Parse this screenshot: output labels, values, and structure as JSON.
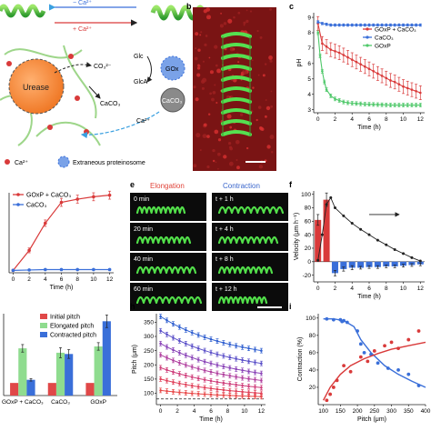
{
  "panel_labels": {
    "b": "b",
    "c": "c",
    "e": "e",
    "f": "f",
    "h": "h",
    "i": "i"
  },
  "panel_a": {
    "top_arrow_label": "− Ca²⁺",
    "bottom_arrow_label": "+ Ca²⁺",
    "labels": {
      "co3": "CO₃²⁻",
      "urease": "Urease",
      "glc": "Glc",
      "glca": "GlcA",
      "gox": "GOx",
      "caco3_arrow": "CaCO₃",
      "caco3_ball": "CaCO₃",
      "ca2": "Ca²⁺"
    },
    "legend": {
      "ca": "Ca²⁺",
      "proteinosome": "Extraneous proteinosome"
    }
  },
  "panel_e": {
    "header_left": "Elongation",
    "header_right": "Contraction",
    "left_labels": [
      "0 min",
      "20 min",
      "40 min",
      "60 min"
    ],
    "right_labels": [
      "t + 1 h",
      "t + 4 h",
      "t + 8 h",
      "t + 12 h"
    ]
  },
  "colors": {
    "red": "#d93a3a",
    "blue": "#3a6fd9",
    "green": "#4fc86a",
    "header_red": "#e0443a",
    "header_blue": "#3a66cc"
  },
  "chart_data": [
    {
      "id": "c",
      "type": "line",
      "xlabel": "Time (h)",
      "ylabel": "pH",
      "xlim": [
        -0.5,
        12.5
      ],
      "ylim": [
        2.8,
        9.3
      ],
      "xticks": [
        0,
        2,
        4,
        6,
        8,
        10,
        12
      ],
      "yticks": [
        3,
        4,
        5,
        6,
        7,
        8,
        9
      ],
      "legend_position": "top-right",
      "series": [
        {
          "name": "GOxP + CaCO₃",
          "color": "#d93a3a",
          "x": [
            0,
            0.5,
            1,
            1.5,
            2,
            2.5,
            3,
            3.5,
            4,
            4.5,
            5,
            5.5,
            6,
            6.5,
            7,
            7.5,
            8,
            8.5,
            9,
            9.5,
            10,
            10.5,
            11,
            11.5,
            12
          ],
          "y": [
            8.6,
            7.3,
            7.1,
            6.9,
            6.8,
            6.7,
            6.55,
            6.4,
            6.25,
            6.1,
            5.95,
            5.8,
            5.65,
            5.5,
            5.35,
            5.2,
            5.05,
            4.9,
            4.8,
            4.65,
            4.5,
            4.4,
            4.3,
            4.2,
            4.1
          ],
          "err": 0.45
        },
        {
          "name": "CaCO₃",
          "color": "#3a6fd9",
          "x": [
            0,
            0.5,
            1,
            1.5,
            2,
            2.5,
            3,
            3.5,
            4,
            4.5,
            5,
            5.5,
            6,
            6.5,
            7,
            7.5,
            8,
            8.5,
            9,
            9.5,
            10,
            10.5,
            11,
            11.5,
            12
          ],
          "y": [
            8.7,
            8.6,
            8.55,
            8.5,
            8.5,
            8.5,
            8.5,
            8.5,
            8.5,
            8.5,
            8.5,
            8.5,
            8.5,
            8.5,
            8.5,
            8.5,
            8.5,
            8.5,
            8.5,
            8.5,
            8.5,
            8.5,
            8.5,
            8.5,
            8.5
          ],
          "err": 0.08
        },
        {
          "name": "GOxP",
          "color": "#4fc86a",
          "x": [
            0,
            0.25,
            0.5,
            0.75,
            1,
            1.5,
            2,
            2.5,
            3,
            3.5,
            4,
            4.5,
            5,
            5.5,
            6,
            6.5,
            7,
            7.5,
            8,
            8.5,
            9,
            9.5,
            10,
            10.5,
            11,
            11.5,
            12
          ],
          "y": [
            8.0,
            6.5,
            5.5,
            4.8,
            4.3,
            3.9,
            3.7,
            3.6,
            3.5,
            3.45,
            3.42,
            3.4,
            3.38,
            3.36,
            3.35,
            3.34,
            3.33,
            3.32,
            3.31,
            3.3,
            3.3,
            3.3,
            3.3,
            3.3,
            3.3,
            3.3,
            3.3
          ],
          "err": 0.12
        }
      ]
    },
    {
      "id": "d",
      "type": "line",
      "xlabel": "Time (h)",
      "ylabel": "",
      "xlim": [
        -0.5,
        12.5
      ],
      "ylim": [
        0,
        100
      ],
      "xticks": [
        0,
        2,
        4,
        6,
        8,
        10,
        12
      ],
      "legend_position": "top-left",
      "series": [
        {
          "name": "GOxP + CaCO₃",
          "color": "#d93a3a",
          "x": [
            0,
            2,
            4,
            6,
            8,
            10,
            12
          ],
          "y": [
            3,
            28,
            62,
            88,
            92,
            95,
            97
          ],
          "err": [
            1,
            3,
            4,
            5,
            5,
            5,
            5
          ]
        },
        {
          "name": "CaCO₃",
          "color": "#3a6fd9",
          "x": [
            0,
            2,
            4,
            6,
            8,
            10,
            12
          ],
          "y": [
            3,
            3.5,
            4,
            4,
            4,
            4,
            4
          ],
          "err": [
            0.5,
            0.5,
            0.5,
            0.5,
            0.5,
            0.5,
            0.5
          ]
        }
      ]
    },
    {
      "id": "f",
      "type": "bar",
      "xlabel": "Time (h)",
      "ylabel": "Velocity (μm h⁻¹)",
      "xlim": [
        -0.5,
        12.5
      ],
      "ylim": [
        -30,
        105
      ],
      "xticks": [
        0,
        2,
        4,
        6,
        8,
        10,
        12
      ],
      "yticks": [
        -20,
        0,
        20,
        40,
        60,
        80,
        100
      ],
      "red_bars": {
        "x": [
          0,
          1
        ],
        "values": [
          62,
          92
        ],
        "err": [
          8,
          10
        ]
      },
      "blue_bars": {
        "x": [
          2,
          3,
          4,
          5,
          6,
          7,
          8,
          9,
          10,
          11,
          12
        ],
        "values": [
          -17,
          -11,
          -9,
          -9,
          -8,
          -8,
          -7,
          -7,
          -6,
          -5,
          -4
        ],
        "err": [
          4,
          3,
          3,
          2,
          2,
          2,
          2,
          2,
          2,
          2,
          2
        ]
      },
      "curve": {
        "x": [
          0,
          0.5,
          1,
          1.5,
          2,
          3,
          4,
          5,
          6,
          7,
          8,
          9,
          10,
          11,
          12
        ],
        "y": [
          2,
          40,
          85,
          95,
          80,
          68,
          57,
          48,
          40,
          32,
          25,
          18,
          12,
          6,
          1
        ]
      }
    },
    {
      "id": "g",
      "type": "bar",
      "categories": [
        "GOxP + CaCO₃",
        "CaCO₃",
        "GOxP"
      ],
      "series": [
        {
          "name": "Initial pitch",
          "color": "#e04848",
          "values": [
            20,
            20,
            20
          ],
          "err": [
            0,
            0,
            0
          ]
        },
        {
          "name": "Elongated pitch",
          "color": "#8fdc8f",
          "values": [
            75,
            68,
            78
          ],
          "err": [
            6,
            8,
            6
          ]
        },
        {
          "name": "Contracted pitch",
          "color": "#3a6fd9",
          "values": [
            25,
            66,
            118
          ],
          "err": [
            2,
            7,
            10
          ]
        }
      ],
      "ylim": [
        0,
        130
      ],
      "legend_position": "top-left"
    },
    {
      "id": "h",
      "type": "line",
      "xlabel": "Time (h)",
      "ylabel": "Pitch (μm)",
      "xlim": [
        -0.5,
        12.5
      ],
      "ylim": [
        60,
        380
      ],
      "xticks": [
        0,
        2,
        4,
        6,
        8,
        10,
        12
      ],
      "yticks": [
        100,
        150,
        200,
        250,
        300,
        350
      ],
      "dashed_line": 80,
      "series": [
        {
          "color": "#2f5fd0",
          "start": 370,
          "end": 250
        },
        {
          "color": "#5a4fc8",
          "start": 320,
          "end": 205
        },
        {
          "color": "#8a44b8",
          "start": 275,
          "end": 170
        },
        {
          "color": "#b03f9e",
          "start": 235,
          "end": 145
        },
        {
          "color": "#cf3d7a",
          "start": 190,
          "end": 120
        },
        {
          "color": "#e0405a",
          "start": 150,
          "end": 100
        },
        {
          "color": "#e84848",
          "start": 110,
          "end": 88
        }
      ]
    },
    {
      "id": "i",
      "type": "scatter",
      "xlabel": "Pitch (μm)",
      "ylabel": "Contraction (%)",
      "xlim": [
        85,
        400
      ],
      "ylim": [
        0,
        105
      ],
      "xticks": [
        100,
        150,
        200,
        250,
        300,
        350,
        400
      ],
      "yticks": [
        20,
        40,
        60,
        80,
        100
      ],
      "blue_points": {
        "x": [
          110,
          130,
          150,
          155,
          160,
          170,
          200,
          210,
          220,
          240,
          260,
          290,
          320,
          350,
          380
        ],
        "y": [
          99,
          98,
          98,
          96,
          97,
          95,
          85,
          70,
          60,
          58,
          48,
          42,
          40,
          35,
          22
        ]
      },
      "red_points": {
        "x": [
          110,
          120,
          130,
          140,
          160,
          180,
          210,
          230,
          250,
          280,
          300,
          320,
          350,
          380
        ],
        "y": [
          5,
          12,
          20,
          28,
          45,
          38,
          55,
          50,
          62,
          68,
          72,
          65,
          75,
          85
        ]
      },
      "blue_fit": {
        "x": [
          100,
          130,
          160,
          190,
          210,
          240,
          280,
          320,
          360,
          400
        ],
        "y": [
          99,
          99,
          97,
          90,
          75,
          60,
          45,
          35,
          27,
          20
        ]
      },
      "red_fit": {
        "x": [
          100,
          120,
          150,
          180,
          220,
          260,
          300,
          350,
          400
        ],
        "y": [
          5,
          20,
          35,
          45,
          53,
          59,
          64,
          68,
          72
        ]
      }
    }
  ]
}
